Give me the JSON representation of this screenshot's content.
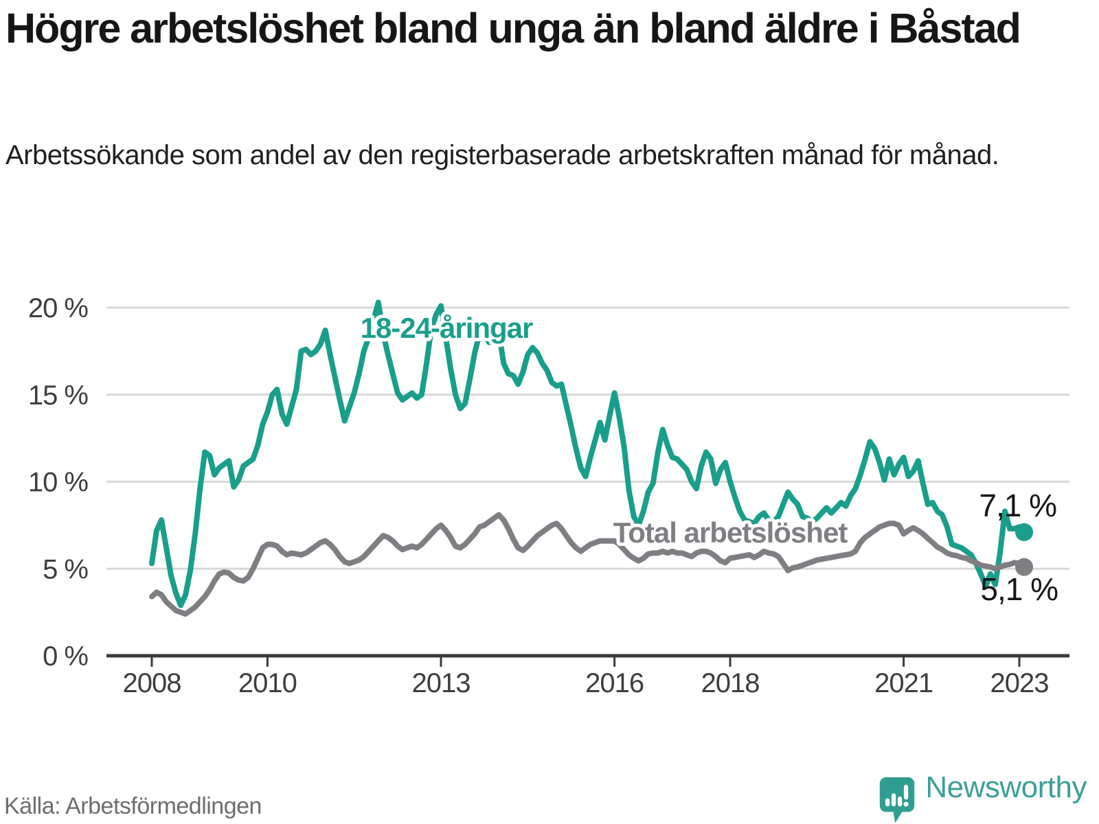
{
  "header": {
    "title": "Högre arbetslöshet bland unga än bland äldre i Båstad",
    "subtitle": "Arbetssökande som andel av den registerbaserade arbetskraften månad för månad."
  },
  "chart_data": {
    "type": "line",
    "title": "Högre arbetslöshet bland unga än bland äldre i Båstad",
    "subtitle": "Arbetssökande som andel av den registerbaserade arbetskraften månad för månad.",
    "x_unit": "month",
    "x_start": "2008-01",
    "x_end": "2023-02",
    "ylim": [
      0,
      21
    ],
    "grid": "horizontal",
    "y_tick_values": [
      0,
      5,
      10,
      15,
      20
    ],
    "y_tick_labels": [
      "0 %",
      "5 %",
      "10 %",
      "15 %",
      "20 %"
    ],
    "x_tick_years": [
      2008,
      2010,
      2013,
      2016,
      2018,
      2021,
      2023
    ],
    "x_tick_labels": [
      "2008",
      "2010",
      "2013",
      "2016",
      "2018",
      "2021",
      "2023"
    ],
    "series": [
      {
        "name": "18-24-åringar",
        "color": "#1a9e8c",
        "end_label": "7,1 %",
        "last_value": 7.1,
        "values": [
          5.3,
          7.2,
          7.8,
          6.2,
          4.6,
          3.6,
          2.9,
          3.5,
          4.9,
          7,
          9.6,
          11.7,
          11.5,
          10.4,
          10.8,
          11,
          11.2,
          9.7,
          10.1,
          10.9,
          11.1,
          11.3,
          12.1,
          13.3,
          14,
          15,
          15.3,
          13.9,
          13.3,
          14.3,
          15.3,
          17.5,
          17.6,
          17.3,
          17.5,
          17.9,
          18.7,
          17.3,
          16,
          14.7,
          13.5,
          14.3,
          15.1,
          16.2,
          17.5,
          18.3,
          19.3,
          20.3,
          18.5,
          17.3,
          16.2,
          15.1,
          14.7,
          14.9,
          15.1,
          14.8,
          15,
          16.8,
          18.8,
          19.6,
          20.1,
          18.3,
          16.5,
          15,
          14.2,
          14.5,
          15.9,
          17.4,
          18.5,
          18.4,
          18,
          18.3,
          18.6,
          16.8,
          16.2,
          16.1,
          15.6,
          16.3,
          17.3,
          17.7,
          17.4,
          16.8,
          16.4,
          15.7,
          15.5,
          15.6,
          14.4,
          13.2,
          11.9,
          10.8,
          10.3,
          11.4,
          12.4,
          13.4,
          12.4,
          13.8,
          15.1,
          13.7,
          12,
          9.5,
          8,
          7.5,
          8.3,
          9.4,
          9.9,
          11.7,
          13,
          12.1,
          11.4,
          11.3,
          11,
          10.7,
          10,
          9.6,
          10.9,
          11.7,
          11.3,
          9.9,
          10.7,
          11.1,
          10,
          9.1,
          8.3,
          7.8,
          7.7,
          7.6,
          8,
          8.2,
          7.8,
          7.7,
          8,
          8.7,
          9.4,
          9,
          8.7,
          8,
          7.9,
          7.7,
          7.9,
          8.2,
          8.5,
          8.2,
          8.5,
          8.8,
          8.6,
          9.2,
          9.6,
          10.4,
          11.3,
          12.3,
          11.9,
          11.1,
          10.1,
          11.3,
          10.4,
          11,
          11.4,
          10.3,
          10.6,
          11.2,
          9.9,
          8.7,
          8.8,
          8.3,
          8.1,
          7.4,
          6.4,
          6.3,
          6.2,
          6,
          5.8,
          5.3,
          4.7,
          4,
          4.7,
          4.1,
          5.9,
          8.3,
          7.3,
          7.3,
          7.4,
          7.1
        ]
      },
      {
        "name": "Total arbetslöshet",
        "color": "#7e7e83",
        "end_label": "5,1 %",
        "last_value": 5.1,
        "values": [
          3.4,
          3.65,
          3.5,
          3.1,
          2.85,
          2.6,
          2.5,
          2.4,
          2.6,
          2.8,
          3.1,
          3.4,
          3.8,
          4.3,
          4.7,
          4.8,
          4.75,
          4.5,
          4.35,
          4.3,
          4.5,
          5,
          5.6,
          6.2,
          6.4,
          6.4,
          6.3,
          6,
          5.8,
          5.9,
          5.85,
          5.8,
          5.9,
          6.1,
          6.3,
          6.5,
          6.6,
          6.4,
          6.1,
          5.7,
          5.4,
          5.3,
          5.4,
          5.5,
          5.7,
          6,
          6.3,
          6.6,
          6.9,
          6.8,
          6.6,
          6.3,
          6.1,
          6.2,
          6.3,
          6.2,
          6.4,
          6.7,
          7,
          7.3,
          7.5,
          7.2,
          6.8,
          6.3,
          6.2,
          6.4,
          6.7,
          7,
          7.4,
          7.5,
          7.7,
          7.9,
          8.1,
          7.8,
          7.3,
          6.7,
          6.2,
          6.05,
          6.3,
          6.6,
          6.9,
          7.1,
          7.3,
          7.5,
          7.6,
          7.3,
          6.9,
          6.5,
          6.2,
          6,
          6.2,
          6.4,
          6.5,
          6.6,
          6.6,
          6.6,
          6.6,
          6.4,
          6.1,
          5.8,
          5.6,
          5.45,
          5.6,
          5.85,
          5.9,
          5.9,
          6,
          5.9,
          6,
          5.9,
          5.9,
          5.8,
          5.7,
          5.9,
          6,
          6,
          5.9,
          5.7,
          5.45,
          5.35,
          5.6,
          5.65,
          5.7,
          5.75,
          5.8,
          5.65,
          5.8,
          6,
          5.9,
          5.85,
          5.7,
          5.3,
          4.9,
          5.05,
          5.1,
          5.2,
          5.3,
          5.4,
          5.5,
          5.55,
          5.6,
          5.65,
          5.7,
          5.75,
          5.8,
          5.85,
          6,
          6.5,
          6.8,
          7,
          7.2,
          7.4,
          7.5,
          7.6,
          7.6,
          7.5,
          7,
          7.2,
          7.35,
          7.2,
          7,
          6.75,
          6.5,
          6.25,
          6.1,
          5.9,
          5.8,
          5.75,
          5.65,
          5.6,
          5.45,
          5.35,
          5.2,
          5.15,
          5.1,
          5,
          5.1,
          5.2,
          5.25,
          5.35,
          5.3,
          5.1
        ]
      }
    ],
    "colors": {
      "youth_line": "#1a9e8c",
      "total_line": "#7e7e83",
      "gridline": "#d8d8d8",
      "axis": "#3a3a3a",
      "brand_teal": "#3ba097"
    }
  },
  "footer": {
    "source": "Källa: Arbetsförmedlingen",
    "brand": "Newsworthy"
  }
}
